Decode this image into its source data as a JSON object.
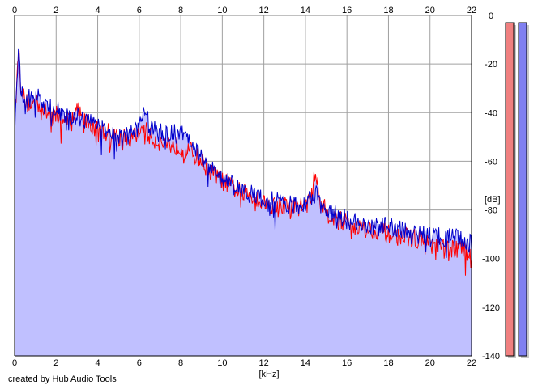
{
  "footer": {
    "credit": "created by Hub Audio Tools"
  },
  "chart_data": {
    "type": "area",
    "title": "",
    "xlabel": "[kHz]",
    "ylabel": "[dB]",
    "xlim": [
      0,
      22
    ],
    "ylim": [
      -140,
      0
    ],
    "x_ticks": [
      "0",
      "2",
      "4",
      "6",
      "8",
      "10",
      "12",
      "14",
      "16",
      "18",
      "20",
      "22"
    ],
    "y_ticks": [
      "0",
      "-20",
      "-40",
      "-60",
      "-80",
      "-100",
      "-120",
      "-140"
    ],
    "grid": true,
    "series": [
      {
        "color": "#ff0000",
        "x": [
          0,
          0.1,
          0.2,
          0.3,
          0.5,
          0.7,
          1,
          1.3,
          1.5,
          2,
          2.5,
          3,
          3.5,
          4,
          4.5,
          5,
          5.5,
          6,
          6.2,
          6.5,
          7,
          7.5,
          8,
          8.5,
          9,
          9.5,
          10,
          10.5,
          11,
          11.5,
          12,
          12.5,
          13,
          13.5,
          14,
          14.3,
          14.5,
          14.7,
          15,
          15.5,
          16,
          16.5,
          17,
          17.5,
          18,
          18.5,
          19,
          19.5,
          20,
          20.5,
          21,
          21.5,
          22
        ],
        "values": [
          -44,
          -28,
          -14,
          -28,
          -36,
          -36,
          -36,
          -37,
          -40,
          -41,
          -43,
          -39,
          -44,
          -47,
          -48,
          -50,
          -51,
          -49,
          -45,
          -50,
          -52,
          -53,
          -54,
          -56,
          -60,
          -65,
          -68,
          -71,
          -73,
          -74,
          -77,
          -78,
          -78,
          -79,
          -78,
          -75,
          -63,
          -75,
          -81,
          -84,
          -85,
          -87,
          -88,
          -88,
          -90,
          -91,
          -91,
          -92,
          -94,
          -95,
          -96,
          -96,
          -98
        ]
      },
      {
        "color": "#0000cc",
        "x": [
          0,
          0.1,
          0.2,
          0.3,
          0.5,
          0.7,
          1,
          1.3,
          1.5,
          2,
          2.5,
          3,
          3.5,
          4,
          4.5,
          5,
          5.5,
          6,
          6.2,
          6.5,
          7,
          7.5,
          8,
          8.5,
          9,
          9.5,
          10,
          10.5,
          11,
          11.5,
          12,
          12.5,
          13,
          13.5,
          14,
          14.3,
          14.5,
          14.7,
          15,
          15.5,
          16,
          16.5,
          17,
          17.5,
          18,
          18.5,
          19,
          19.5,
          20,
          20.5,
          21,
          21.5,
          22
        ],
        "values": [
          -48,
          -25,
          -14,
          -29,
          -37,
          -34,
          -33,
          -35,
          -38,
          -39,
          -41,
          -42,
          -43,
          -45,
          -47,
          -49,
          -48,
          -47,
          -36,
          -46,
          -48,
          -49,
          -48,
          -53,
          -58,
          -63,
          -66,
          -70,
          -72,
          -74,
          -76,
          -76,
          -78,
          -78,
          -77,
          -76,
          -70,
          -77,
          -80,
          -82,
          -84,
          -85,
          -86,
          -87,
          -87,
          -88,
          -89,
          -89,
          -90,
          -91,
          -91,
          -92,
          -94
        ]
      }
    ],
    "fill_color": "#c0c0ff",
    "meters": [
      {
        "channel": "left",
        "color": "#f08080",
        "level_db": -3
      },
      {
        "channel": "right",
        "color": "#8080f0",
        "level_db": -3
      }
    ]
  }
}
